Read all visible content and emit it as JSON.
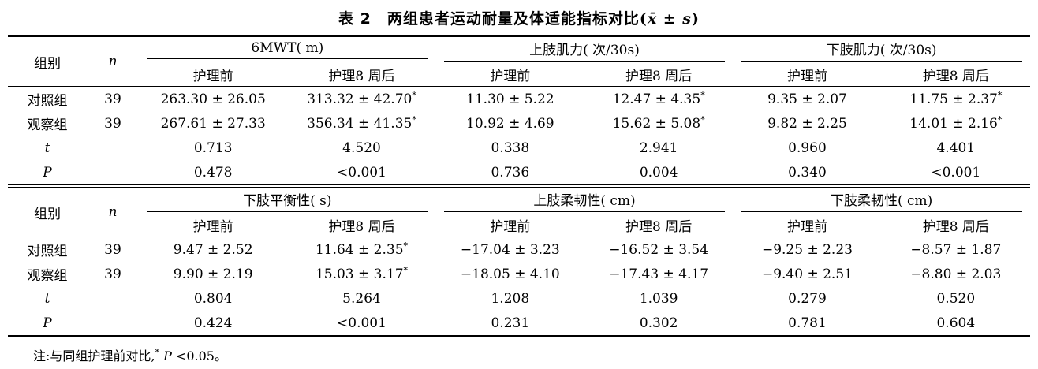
{
  "title": {
    "main": "表 2　两组患者运动耐量及体适能指标对比",
    "stat_open": "(",
    "stat": "x̄ ± s",
    "stat_close": ")"
  },
  "blocks": [
    {
      "header": {
        "group": "组别",
        "n": "n",
        "groups": [
          {
            "label": "6MWT( m)",
            "pre": "护理前",
            "post": "护理8 周后"
          },
          {
            "label": "上肢肌力( 次/30s)",
            "pre": "护理前",
            "post": "护理8 周后"
          },
          {
            "label": "下肢肌力( 次/30s)",
            "pre": "护理前",
            "post": "护理8 周后"
          }
        ]
      },
      "rows": [
        {
          "label": "对照组",
          "n": "39",
          "cells": [
            {
              "v": "263.30 ± 26.05",
              "s": ""
            },
            {
              "v": "313.32 ± 42.70",
              "s": "*"
            },
            {
              "v": "11.30 ± 5.22",
              "s": ""
            },
            {
              "v": "12.47 ± 4.35",
              "s": "*"
            },
            {
              "v": "9.35 ± 2.07",
              "s": ""
            },
            {
              "v": "11.75 ± 2.37",
              "s": "*"
            }
          ]
        },
        {
          "label": "观察组",
          "n": "39",
          "cells": [
            {
              "v": "267.61 ± 27.33",
              "s": ""
            },
            {
              "v": "356.34 ± 41.35",
              "s": "*"
            },
            {
              "v": "10.92 ± 4.69",
              "s": ""
            },
            {
              "v": "15.62 ± 5.08",
              "s": "*"
            },
            {
              "v": "9.82 ± 2.25",
              "s": ""
            },
            {
              "v": "14.01 ± 2.16",
              "s": "*"
            }
          ]
        },
        {
          "label": "t",
          "n": "",
          "cells": [
            {
              "v": "0.713",
              "s": ""
            },
            {
              "v": "4.520",
              "s": ""
            },
            {
              "v": "0.338",
              "s": ""
            },
            {
              "v": "2.941",
              "s": ""
            },
            {
              "v": "0.960",
              "s": ""
            },
            {
              "v": "4.401",
              "s": ""
            }
          ]
        },
        {
          "label": "P",
          "n": "",
          "cells": [
            {
              "v": "0.478",
              "s": ""
            },
            {
              "v": "<0.001",
              "s": ""
            },
            {
              "v": "0.736",
              "s": ""
            },
            {
              "v": "0.004",
              "s": ""
            },
            {
              "v": "0.340",
              "s": ""
            },
            {
              "v": "<0.001",
              "s": ""
            }
          ]
        }
      ]
    },
    {
      "header": {
        "group": "组别",
        "n": "n",
        "groups": [
          {
            "label": "下肢平衡性( s)",
            "pre": "护理前",
            "post": "护理8 周后"
          },
          {
            "label": "上肢柔韧性( cm)",
            "pre": "护理前",
            "post": "护理8 周后"
          },
          {
            "label": "下肢柔韧性( cm)",
            "pre": "护理前",
            "post": "护理8 周后"
          }
        ]
      },
      "rows": [
        {
          "label": "对照组",
          "n": "39",
          "cells": [
            {
              "v": "9.47 ± 2.52",
              "s": ""
            },
            {
              "v": "11.64 ± 2.35",
              "s": "*"
            },
            {
              "v": "−17.04 ± 3.23",
              "s": ""
            },
            {
              "v": "−16.52 ± 3.54",
              "s": ""
            },
            {
              "v": "−9.25 ± 2.23",
              "s": ""
            },
            {
              "v": "−8.57 ± 1.87",
              "s": ""
            }
          ]
        },
        {
          "label": "观察组",
          "n": "39",
          "cells": [
            {
              "v": "9.90 ± 2.19",
              "s": ""
            },
            {
              "v": "15.03 ± 3.17",
              "s": "*"
            },
            {
              "v": "−18.05 ± 4.10",
              "s": ""
            },
            {
              "v": "−17.43 ± 4.17",
              "s": ""
            },
            {
              "v": "−9.40 ± 2.51",
              "s": ""
            },
            {
              "v": "−8.80 ± 2.03",
              "s": ""
            }
          ]
        },
        {
          "label": "t",
          "n": "",
          "cells": [
            {
              "v": "0.804",
              "s": ""
            },
            {
              "v": "5.264",
              "s": ""
            },
            {
              "v": "1.208",
              "s": ""
            },
            {
              "v": "1.039",
              "s": ""
            },
            {
              "v": "0.279",
              "s": ""
            },
            {
              "v": "0.520",
              "s": ""
            }
          ]
        },
        {
          "label": "P",
          "n": "",
          "cells": [
            {
              "v": "0.424",
              "s": ""
            },
            {
              "v": "<0.001",
              "s": ""
            },
            {
              "v": "0.231",
              "s": ""
            },
            {
              "v": "0.302",
              "s": ""
            },
            {
              "v": "0.781",
              "s": ""
            },
            {
              "v": "0.604",
              "s": ""
            }
          ]
        }
      ]
    }
  ],
  "footnote": {
    "prefix": "注:与同组护理前对比,",
    "sup": "*",
    "p": "P",
    "rest": " <0.05。"
  }
}
